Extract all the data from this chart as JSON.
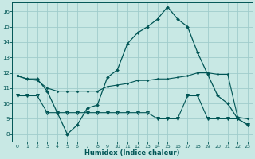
{
  "xlabel": "Humidex (Indice chaleur)",
  "bg_color": "#c8e8e4",
  "grid_color": "#a0cccc",
  "line_color": "#005555",
  "xlim": [
    -0.5,
    23.5
  ],
  "ylim": [
    7.5,
    16.6
  ],
  "xticks": [
    0,
    1,
    2,
    3,
    4,
    5,
    6,
    7,
    8,
    9,
    10,
    11,
    12,
    13,
    14,
    15,
    16,
    17,
    18,
    19,
    20,
    21,
    22,
    23
  ],
  "yticks": [
    8,
    9,
    10,
    11,
    12,
    13,
    14,
    15,
    16
  ],
  "line1_x": [
    0,
    1,
    2,
    3,
    4,
    5,
    6,
    7,
    8,
    9,
    10,
    11,
    12,
    13,
    14,
    15,
    16,
    17,
    18,
    19,
    20,
    21,
    22,
    23
  ],
  "line1_y": [
    11.8,
    11.6,
    11.6,
    10.8,
    9.4,
    8.0,
    8.6,
    9.7,
    9.9,
    11.7,
    12.2,
    13.9,
    14.6,
    15.0,
    15.5,
    16.3,
    15.5,
    15.0,
    13.3,
    11.9,
    10.5,
    10.0,
    9.0,
    8.6
  ],
  "line2_x": [
    0,
    1,
    2,
    3,
    4,
    5,
    6,
    7,
    8,
    9,
    10,
    11,
    12,
    13,
    14,
    15,
    16,
    17,
    18,
    19,
    20,
    21,
    22,
    23
  ],
  "line2_y": [
    11.8,
    11.6,
    11.5,
    11.0,
    10.8,
    10.8,
    10.8,
    10.8,
    10.8,
    11.1,
    11.2,
    11.3,
    11.5,
    11.5,
    11.6,
    11.6,
    11.7,
    11.8,
    12.0,
    12.0,
    11.9,
    11.9,
    9.1,
    9.0
  ],
  "line3_x": [
    0,
    1,
    2,
    3,
    4,
    5,
    6,
    7,
    8,
    9,
    10,
    11,
    12,
    13,
    14,
    15,
    16,
    17,
    18,
    19,
    20,
    21,
    22,
    23
  ],
  "line3_y": [
    10.5,
    10.5,
    10.5,
    9.4,
    9.4,
    9.4,
    9.4,
    9.4,
    9.4,
    9.4,
    9.4,
    9.4,
    9.4,
    9.4,
    9.0,
    9.0,
    9.0,
    10.5,
    10.5,
    9.0,
    9.0,
    9.0,
    9.0,
    8.6
  ]
}
